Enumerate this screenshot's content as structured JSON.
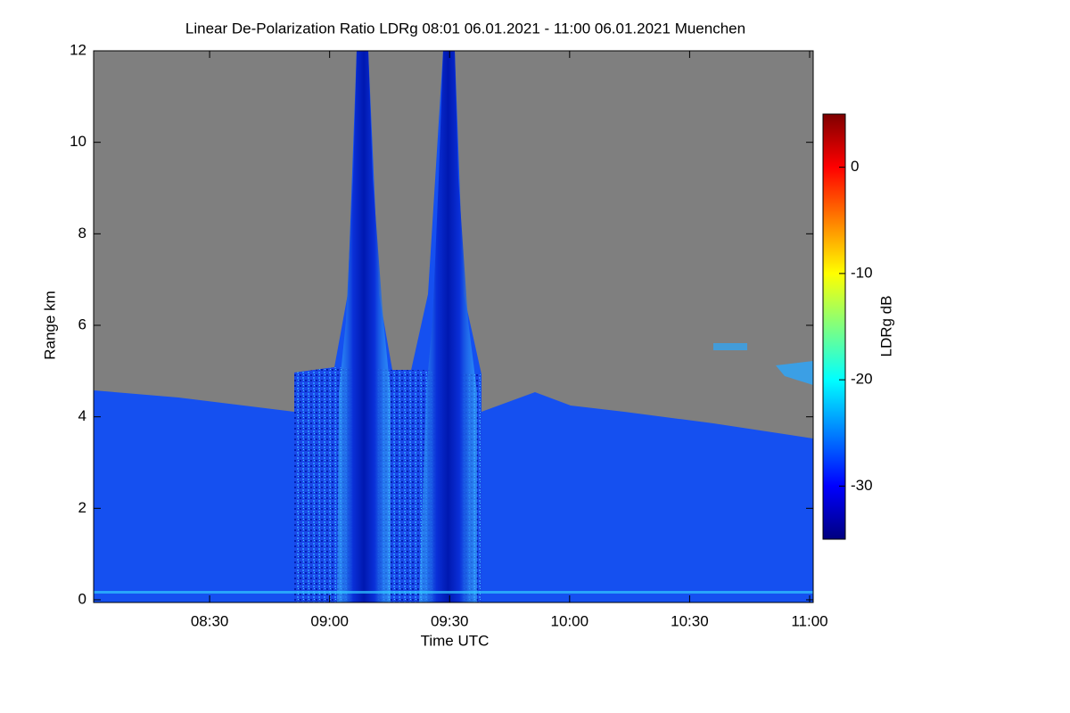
{
  "chart_data": {
    "type": "heatmap",
    "title": "Linear De-Polarization Ratio LDRg   08:01 06.01.2021 - 11:00 06.01.2021 Muenchen",
    "x_label": "Time UTC",
    "y_label": "Range km",
    "xlim": [
      8.0167,
      11.0
    ],
    "xticks": [
      {
        "value": 8.5,
        "label": "08:30"
      },
      {
        "value": 9.0,
        "label": "09:00"
      },
      {
        "value": 9.5,
        "label": "09:30"
      },
      {
        "value": 10.0,
        "label": "10:00"
      },
      {
        "value": 10.5,
        "label": "10:30"
      },
      {
        "value": 11.0,
        "label": "11:00"
      }
    ],
    "ylim": [
      0,
      12
    ],
    "yticks": [
      0,
      2,
      4,
      6,
      8,
      10,
      12
    ],
    "colorbar_label": "LDRg dB",
    "clim": [
      -35,
      5
    ],
    "cticks": [
      -30,
      -20,
      -10,
      0
    ],
    "colormap": "jet"
  }
}
